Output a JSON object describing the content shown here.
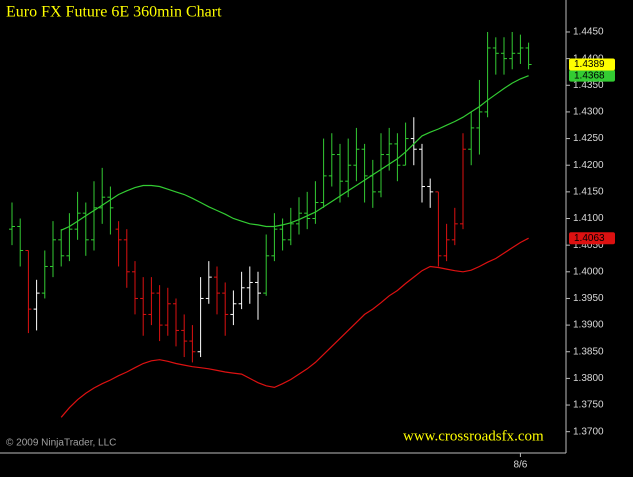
{
  "chart_data": {
    "type": "ohlc",
    "title": "Euro FX Future 6E 360min Chart",
    "copyright": "© 2009 NinjaTrader, LLC",
    "watermark": "www.crossroadsfx.com",
    "categories": [
      null,
      null,
      null,
      null,
      null,
      null,
      null,
      null,
      null,
      null,
      null,
      null,
      null,
      null,
      null,
      null,
      null,
      null,
      null,
      null,
      null,
      null,
      null,
      null,
      null,
      null,
      null,
      null,
      null,
      null,
      null,
      null,
      null,
      null,
      null,
      null,
      null,
      null,
      null,
      null,
      null,
      null,
      null,
      null,
      null,
      null,
      null,
      null,
      null,
      null,
      null,
      null,
      null,
      null,
      null,
      null,
      null,
      null,
      null,
      null,
      null,
      null,
      "8/6",
      null
    ],
    "open": [
      1.408,
      1.4085,
      1.404,
      1.393,
      1.396,
      1.401,
      1.406,
      1.403,
      1.408,
      1.411,
      1.406,
      1.412,
      1.414,
      1.408,
      1.406,
      1.4,
      1.395,
      1.392,
      1.396,
      1.39,
      1.394,
      1.389,
      1.387,
      1.385,
      1.395,
      1.399,
      1.396,
      1.392,
      1.394,
      1.397,
      1.398,
      1.396,
      1.403,
      1.408,
      1.406,
      1.409,
      1.411,
      1.41,
      1.413,
      1.418,
      1.422,
      1.417,
      1.42,
      1.423,
      1.418,
      1.415,
      1.422,
      1.424,
      1.42,
      1.425,
      1.423,
      1.416,
      1.415,
      1.403,
      1.406,
      1.409,
      1.423,
      1.427,
      1.43,
      1.442,
      1.441,
      1.44,
      1.441,
      1.442
    ],
    "high": [
      1.413,
      1.41,
      1.404,
      1.3985,
      1.404,
      1.4095,
      1.408,
      1.411,
      1.415,
      1.413,
      1.417,
      1.4195,
      1.416,
      1.4095,
      1.408,
      1.402,
      1.399,
      1.399,
      1.3975,
      1.397,
      1.395,
      1.392,
      1.39,
      1.399,
      1.402,
      1.401,
      1.398,
      1.3965,
      1.4,
      1.401,
      1.4,
      1.407,
      1.411,
      1.41,
      1.412,
      1.414,
      1.415,
      1.417,
      1.425,
      1.426,
      1.424,
      1.425,
      1.427,
      1.424,
      1.421,
      1.426,
      1.427,
      1.426,
      1.428,
      1.429,
      1.424,
      1.4175,
      1.415,
      1.409,
      1.412,
      1.426,
      1.43,
      1.436,
      1.445,
      1.444,
      1.444,
      1.445,
      1.4445,
      1.443
    ],
    "low": [
      1.405,
      1.401,
      1.3885,
      1.389,
      1.395,
      1.399,
      1.401,
      1.402,
      1.406,
      1.403,
      1.404,
      1.409,
      1.407,
      1.401,
      1.397,
      1.392,
      1.388,
      1.39,
      1.387,
      1.388,
      1.386,
      1.384,
      1.383,
      1.384,
      1.394,
      1.392,
      1.388,
      1.39,
      1.393,
      1.394,
      1.391,
      1.3955,
      1.402,
      1.404,
      1.405,
      1.407,
      1.408,
      1.409,
      1.412,
      1.416,
      1.413,
      1.414,
      1.417,
      1.413,
      1.412,
      1.414,
      1.419,
      1.417,
      1.42,
      1.42,
      1.413,
      1.412,
      1.401,
      1.402,
      1.405,
      1.408,
      1.42,
      1.422,
      1.429,
      1.437,
      1.437,
      1.438,
      1.439,
      1.438
    ],
    "close": [
      1.4085,
      1.404,
      1.393,
      1.396,
      1.401,
      1.406,
      1.403,
      1.408,
      1.411,
      1.406,
      1.412,
      1.414,
      1.412,
      1.406,
      1.4,
      1.395,
      1.392,
      1.396,
      1.39,
      1.394,
      1.389,
      1.387,
      1.385,
      1.395,
      1.399,
      1.396,
      1.392,
      1.394,
      1.397,
      1.398,
      1.396,
      1.403,
      1.408,
      1.406,
      1.409,
      1.411,
      1.41,
      1.413,
      1.418,
      1.422,
      1.417,
      1.42,
      1.423,
      1.418,
      1.415,
      1.422,
      1.424,
      1.42,
      1.425,
      1.423,
      1.416,
      1.415,
      1.403,
      1.406,
      1.409,
      1.423,
      1.427,
      1.43,
      1.442,
      1.441,
      1.44,
      1.441,
      1.442,
      1.4389
    ],
    "bar_colors": [
      "#33cc33",
      "#33cc33",
      "#dd1111",
      "#ffffff",
      "#33cc33",
      "#33cc33",
      "#33cc33",
      "#33cc33",
      "#33cc33",
      "#33cc33",
      "#33cc33",
      "#33cc33",
      "#33cc33",
      "#dd1111",
      "#dd1111",
      "#dd1111",
      "#dd1111",
      "#dd1111",
      "#dd1111",
      "#dd1111",
      "#dd1111",
      "#dd1111",
      "#dd1111",
      "#ffffff",
      "#ffffff",
      "#dd1111",
      "#dd1111",
      "#ffffff",
      "#ffffff",
      "#ffffff",
      "#ffffff",
      "#33cc33",
      "#33cc33",
      "#33cc33",
      "#33cc33",
      "#33cc33",
      "#33cc33",
      "#33cc33",
      "#33cc33",
      "#33cc33",
      "#33cc33",
      "#33cc33",
      "#33cc33",
      "#33cc33",
      "#33cc33",
      "#33cc33",
      "#33cc33",
      "#33cc33",
      "#33cc33",
      "#ffffff",
      "#ffffff",
      "#ffffff",
      "#dd1111",
      "#dd1111",
      "#dd1111",
      "#dd1111",
      "#33cc33",
      "#33cc33",
      "#33cc33",
      "#33cc33",
      "#33cc33",
      "#33cc33",
      "#33cc33",
      "#33cc33"
    ],
    "last_close_color": "#ffff00",
    "series": [
      {
        "color": "#33cc33",
        "values": [
          null,
          null,
          null,
          null,
          null,
          null,
          1.4078,
          1.4085,
          1.4095,
          1.4105,
          1.4115,
          1.4125,
          1.4135,
          1.4145,
          1.4152,
          1.4158,
          1.4162,
          1.4162,
          1.416,
          1.4155,
          1.415,
          1.4145,
          1.4138,
          1.413,
          1.4122,
          1.4115,
          1.4108,
          1.41,
          1.4095,
          1.409,
          1.4088,
          1.4085,
          1.4085,
          1.4088,
          1.4092,
          1.4098,
          1.4105,
          1.4112,
          1.4122,
          1.4132,
          1.4142,
          1.4152,
          1.4162,
          1.4172,
          1.4182,
          1.4192,
          1.4202,
          1.4212,
          1.4225,
          1.424,
          1.4255,
          1.4262,
          1.4268,
          1.4275,
          1.4282,
          1.429,
          1.43,
          1.431,
          1.4322,
          1.4333,
          1.4344,
          1.4354,
          1.4362,
          1.4368
        ]
      },
      {
        "color": "#dd1111",
        "values": [
          null,
          null,
          null,
          null,
          null,
          null,
          1.3727,
          1.3745,
          1.376,
          1.3772,
          1.3782,
          1.379,
          1.3797,
          1.3805,
          1.3812,
          1.382,
          1.3828,
          1.3833,
          1.3835,
          1.3832,
          1.3828,
          1.3825,
          1.3822,
          1.382,
          1.3818,
          1.3815,
          1.3812,
          1.381,
          1.3808,
          1.38,
          1.3792,
          1.3786,
          1.3783,
          1.379,
          1.3798,
          1.3808,
          1.3818,
          1.383,
          1.3845,
          1.386,
          1.3875,
          1.389,
          1.3905,
          1.392,
          1.393,
          1.3942,
          1.3955,
          1.3965,
          1.3978,
          1.399,
          1.4002,
          1.401,
          1.4008,
          1.4005,
          1.4002,
          1.4,
          1.4003,
          1.401,
          1.4018,
          1.4025,
          1.4035,
          1.4045,
          1.4055,
          1.4063
        ]
      }
    ],
    "ylim": [
      1.366,
      1.451
    ],
    "yticks": [
      {
        "value": 1.37,
        "label": "1.3700"
      },
      {
        "value": 1.375,
        "label": "1.3750"
      },
      {
        "value": 1.38,
        "label": "1.3800"
      },
      {
        "value": 1.385,
        "label": "1.3850"
      },
      {
        "value": 1.39,
        "label": "1.3900"
      },
      {
        "value": 1.395,
        "label": "1.3950"
      },
      {
        "value": 1.4,
        "label": "1.4000"
      },
      {
        "value": 1.405,
        "label": "1.4050"
      },
      {
        "value": 1.41,
        "label": "1.4100"
      },
      {
        "value": 1.415,
        "label": "1.4150"
      },
      {
        "value": 1.42,
        "label": "1.4200"
      },
      {
        "value": 1.425,
        "label": "1.4250"
      },
      {
        "value": 1.43,
        "label": "1.4300"
      },
      {
        "value": 1.435,
        "label": "1.4350"
      },
      {
        "value": 1.44,
        "label": "1.4400"
      },
      {
        "value": 1.445,
        "label": "1.4450"
      }
    ]
  }
}
